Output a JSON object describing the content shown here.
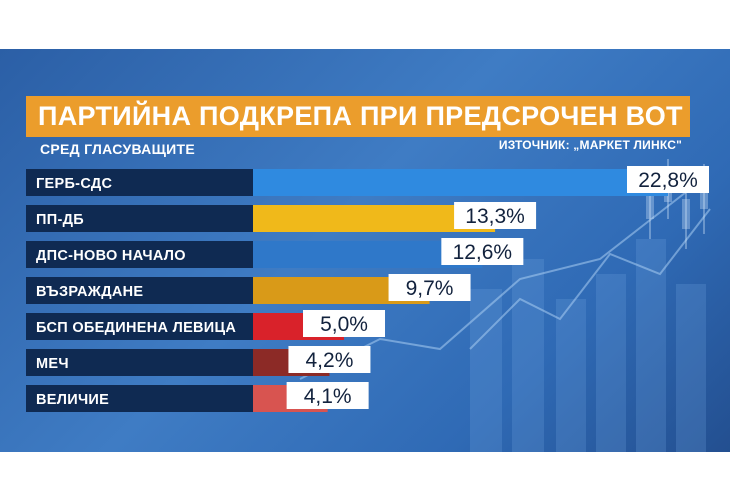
{
  "chart_data": {
    "type": "bar",
    "title": "ПАРТИЙНА ПОДКРЕПА ПРИ ПРЕДСРОЧЕН ВОТ",
    "subtitle": "СРЕД ГЛАСУВАЩИТЕ",
    "source": "ИЗТОЧНИК: „МАРКЕТ ЛИНКС\"",
    "categories": [
      "ГЕРБ-СДС",
      "ПП-ДБ",
      "ДПС-НОВО НАЧАЛО",
      "ВЪЗРАЖДАНЕ",
      "БСП ОБЕДИНЕНА ЛЕВИЦА",
      "МЕЧ",
      "ВЕЛИЧИЕ"
    ],
    "values": [
      22.8,
      13.3,
      12.6,
      9.7,
      5.0,
      4.2,
      4.1
    ],
    "value_labels": [
      "22,8%",
      "13,3%",
      "12,6%",
      "9,7%",
      "5,0%",
      "4,2%",
      "4,1%"
    ],
    "colors": [
      "#2f8ae0",
      "#f0b91a",
      "#2f78c9",
      "#d99a18",
      "#d9222a",
      "#8c2a26",
      "#d85450"
    ],
    "xlabel": "",
    "ylabel": "",
    "legend": "none",
    "grid": false
  }
}
